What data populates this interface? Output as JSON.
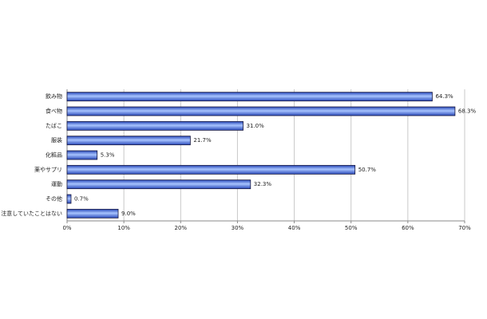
{
  "chart_data": {
    "type": "bar",
    "orientation": "horizontal",
    "categories": [
      "飲み物",
      "食べ物",
      "たばこ",
      "服装",
      "化粧品",
      "薬やサプリ",
      "運動",
      "その他",
      "注意していたことはない"
    ],
    "values": [
      64.3,
      68.3,
      31.0,
      21.7,
      5.3,
      50.7,
      32.3,
      0.7,
      9.0
    ],
    "value_labels": [
      "64.3%",
      "68.3%",
      "31.0%",
      "21.7%",
      "5.3%",
      "50.7%",
      "32.3%",
      "0.7%",
      "9.0%"
    ],
    "color": "#4f7fe8",
    "xlim": [
      0,
      70
    ],
    "xticks": [
      {
        "value": 0,
        "label": "0%"
      },
      {
        "value": 10,
        "label": "10%"
      },
      {
        "value": 20,
        "label": "20%"
      },
      {
        "value": 30,
        "label": "30%"
      },
      {
        "value": 40,
        "label": "40%"
      },
      {
        "value": 50,
        "label": "50%"
      },
      {
        "value": 60,
        "label": "60%"
      },
      {
        "value": 70,
        "label": "70%"
      }
    ],
    "grid": true
  }
}
